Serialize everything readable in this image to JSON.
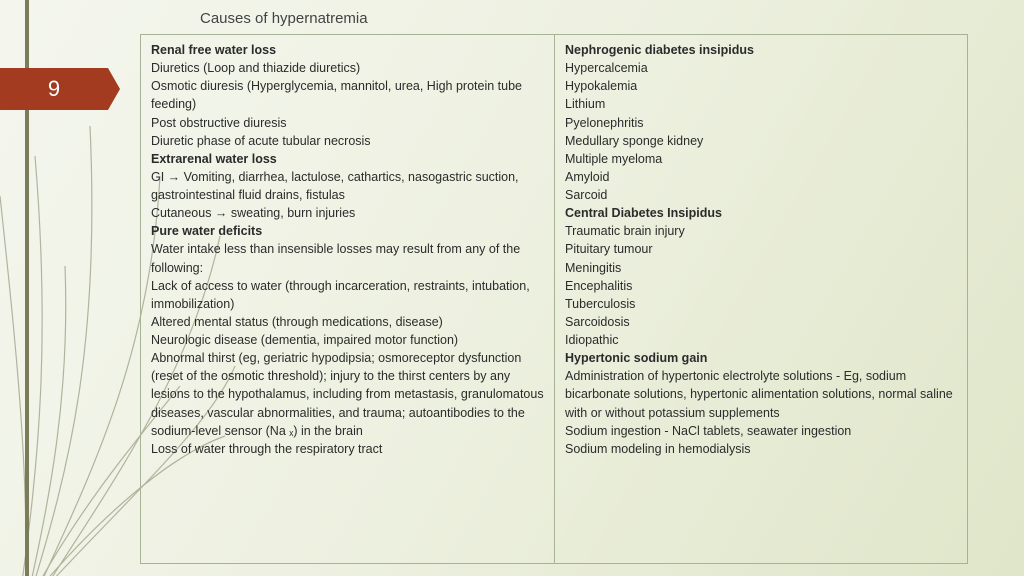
{
  "slide_number": "9",
  "title": "Causes of hypernatremia",
  "colors": {
    "accent_bar": "#7a7c5a",
    "number_tab": "#a23b1f",
    "border": "#a7b394",
    "bg_start": "#f4f6ee",
    "bg_end": "#dfe6c9",
    "text": "#2b2b2b"
  },
  "left": [
    {
      "t": "h",
      "v": "Renal free water loss"
    },
    {
      "t": "p",
      "v": "Diuretics (Loop and thiazide diuretics)"
    },
    {
      "t": "p",
      "v": "Osmotic diuresis (Hyperglycemia, mannitol, urea, High protein tube feeding)"
    },
    {
      "t": "p",
      "v": "Post obstructive diuresis"
    },
    {
      "t": "p",
      "v": "Diuretic phase of acute tubular necrosis"
    },
    {
      "t": "h",
      "v": "Extrarenal water loss"
    },
    {
      "t": "p",
      "v": "GI → Vomiting, diarrhea, lactulose, cathartics, nasogastric suction, gastrointestinal fluid drains, fistulas"
    },
    {
      "t": "p",
      "v": "Cutaneous → sweating, burn injuries"
    },
    {
      "t": "h",
      "v": "Pure water deficits"
    },
    {
      "t": "p",
      "v": "Water intake less than insensible losses may result from any of the following:"
    },
    {
      "t": "p",
      "v": "Lack of access to water (through incarceration, restraints, intubation, immobilization)"
    },
    {
      "t": "p",
      "v": "Altered mental status (through medications, disease)"
    },
    {
      "t": "p",
      "v": "Neurologic disease (dementia, impaired motor function)"
    },
    {
      "t": "p",
      "v": "Abnormal thirst (eg, geriatric hypodipsia; osmoreceptor dysfunction (reset of the osmotic threshold); injury to the thirst centers by any lesions to the hypothalamus, including from metastasis, granulomatous diseases, vascular abnormalities, and trauma; autoantibodies to the sodium-level sensor (Na ₓ) in the brain"
    },
    {
      "t": "p",
      "v": "Loss of water through the respiratory tract"
    }
  ],
  "right": [
    {
      "t": "h",
      "v": "Nephrogenic diabetes insipidus"
    },
    {
      "t": "p",
      "v": "Hypercalcemia"
    },
    {
      "t": "p",
      "v": "Hypokalemia"
    },
    {
      "t": "p",
      "v": "Lithium"
    },
    {
      "t": "p",
      "v": "Pyelonephritis"
    },
    {
      "t": "p",
      "v": "Medullary sponge kidney"
    },
    {
      "t": "p",
      "v": "Multiple myeloma"
    },
    {
      "t": "p",
      "v": "Amyloid"
    },
    {
      "t": "p",
      "v": "Sarcoid"
    },
    {
      "t": "h",
      "v": "Central Diabetes Insipidus"
    },
    {
      "t": "p",
      "v": "Traumatic brain injury"
    },
    {
      "t": "p",
      "v": "Pituitary tumour"
    },
    {
      "t": "p",
      "v": "Meningitis"
    },
    {
      "t": "p",
      "v": "Encephalitis"
    },
    {
      "t": "p",
      "v": "Tuberculosis"
    },
    {
      "t": "p",
      "v": "Sarcoidosis"
    },
    {
      "t": "p",
      "v": "Idiopathic"
    },
    {
      "t": "h",
      "v": "Hypertonic sodium gain"
    },
    {
      "t": "p",
      "v": "Administration of hypertonic electrolyte solutions - Eg, sodium bicarbonate solutions, hypertonic alimentation solutions, normal saline with or without potassium supplements"
    },
    {
      "t": "p",
      "v": "Sodium ingestion - NaCl tablets, seawater ingestion"
    },
    {
      "t": "p",
      "v": "Sodium modeling in hemodialysis"
    }
  ]
}
